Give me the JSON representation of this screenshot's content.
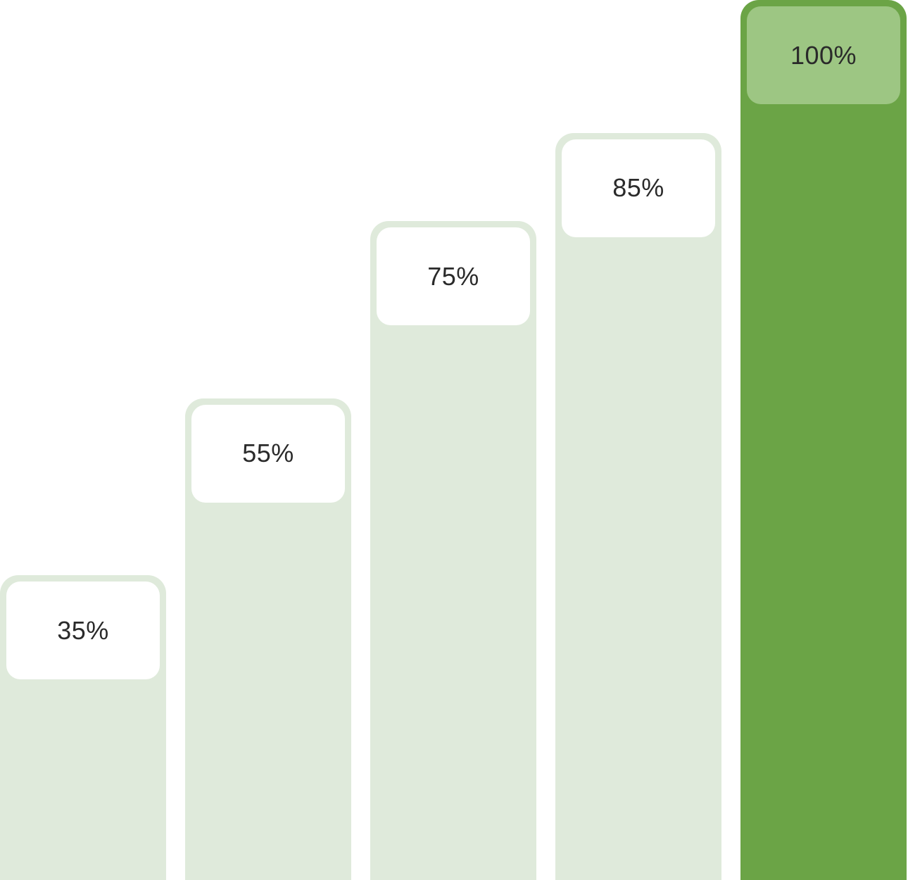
{
  "chart_data": {
    "type": "bar",
    "categories": [
      "",
      "",
      "",
      "",
      ""
    ],
    "values": [
      35,
      55,
      75,
      85,
      100
    ],
    "labels": [
      "35%",
      "55%",
      "75%",
      "85%",
      "100%"
    ],
    "highlight_index": 4,
    "ylim": [
      0,
      100
    ],
    "grid": false,
    "legend": "none",
    "colors": {
      "bar_light": "#dfeadb",
      "label_light": "#ffffff",
      "bar_highlight": "#6ba446",
      "label_highlight": "#9dc683",
      "text": "#2a2a2a"
    }
  }
}
